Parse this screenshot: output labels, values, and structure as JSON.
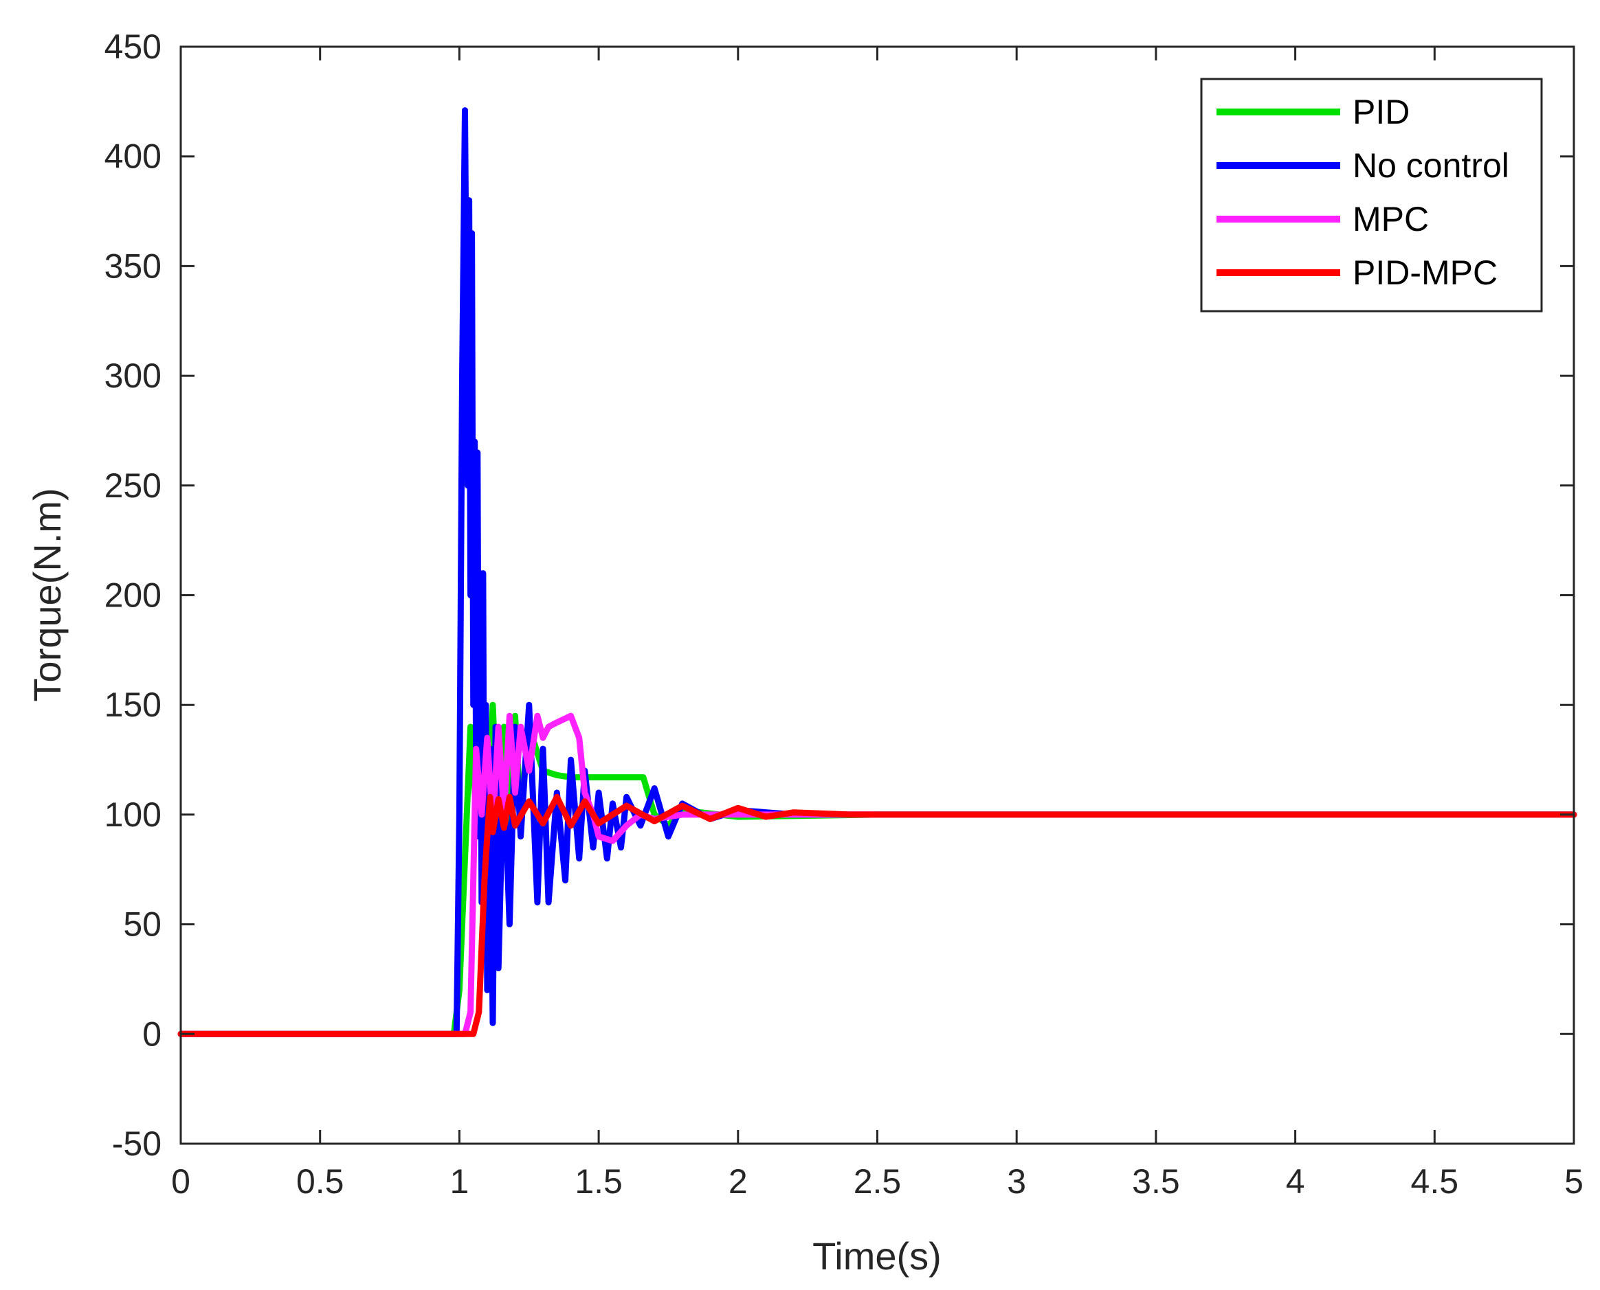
{
  "chart_data": {
    "type": "line",
    "title": "",
    "xlabel": "Time(s)",
    "ylabel": "Torque(N.m)",
    "xlim": [
      0,
      5
    ],
    "ylim": [
      -50,
      450
    ],
    "xticks": [
      0,
      0.5,
      1,
      1.5,
      2,
      2.5,
      3,
      3.5,
      4,
      4.5,
      5
    ],
    "xtick_labels": [
      "0",
      "0.5",
      "1",
      "1.5",
      "2",
      "2.5",
      "3",
      "3.5",
      "4",
      "4.5",
      "5"
    ],
    "yticks": [
      -50,
      0,
      50,
      100,
      150,
      200,
      250,
      300,
      350,
      400,
      450
    ],
    "ytick_labels": [
      "-50",
      "0",
      "50",
      "100",
      "150",
      "200",
      "250",
      "300",
      "350",
      "400",
      "450"
    ],
    "grid": false,
    "legend": "top-right",
    "series": [
      {
        "name": "PID",
        "color": "#00e000",
        "x": [
          0,
          0.98,
          1.0,
          1.02,
          1.04,
          1.06,
          1.08,
          1.1,
          1.12,
          1.14,
          1.16,
          1.18,
          1.2,
          1.22,
          1.25,
          1.3,
          1.35,
          1.4,
          1.45,
          1.5,
          1.55,
          1.6,
          1.66,
          1.7,
          1.75,
          1.8,
          2.0,
          2.5,
          3.0,
          5.0
        ],
        "y": [
          0,
          0,
          20,
          80,
          140,
          100,
          160,
          85,
          150,
          90,
          140,
          95,
          145,
          100,
          140,
          120,
          118,
          117,
          117,
          117,
          117,
          117,
          117,
          100,
          95,
          102,
          99,
          100,
          100,
          100
        ]
      },
      {
        "name": "No control",
        "color": "#0000ff",
        "x": [
          0,
          0.99,
          1.0,
          1.01,
          1.02,
          1.03,
          1.035,
          1.04,
          1.045,
          1.05,
          1.055,
          1.06,
          1.065,
          1.07,
          1.075,
          1.08,
          1.085,
          1.09,
          1.095,
          1.1,
          1.11,
          1.12,
          1.13,
          1.14,
          1.15,
          1.16,
          1.18,
          1.2,
          1.22,
          1.25,
          1.28,
          1.3,
          1.32,
          1.35,
          1.38,
          1.4,
          1.43,
          1.45,
          1.48,
          1.5,
          1.53,
          1.55,
          1.58,
          1.6,
          1.65,
          1.7,
          1.75,
          1.8,
          1.9,
          2.0,
          2.2,
          2.5,
          3.0,
          5.0
        ],
        "y": [
          0,
          0,
          100,
          300,
          421,
          250,
          380,
          200,
          365,
          150,
          270,
          120,
          265,
          90,
          210,
          60,
          210,
          40,
          150,
          20,
          130,
          5,
          140,
          30,
          80,
          120,
          50,
          140,
          90,
          150,
          60,
          130,
          60,
          110,
          70,
          125,
          80,
          120,
          85,
          110,
          80,
          105,
          85,
          108,
          95,
          112,
          90,
          105,
          98,
          102,
          100,
          100,
          100,
          100
        ]
      },
      {
        "name": "MPC",
        "color": "#ff22ff",
        "x": [
          0,
          1.02,
          1.04,
          1.06,
          1.08,
          1.1,
          1.12,
          1.14,
          1.16,
          1.18,
          1.2,
          1.22,
          1.25,
          1.28,
          1.3,
          1.32,
          1.35,
          1.4,
          1.43,
          1.45,
          1.48,
          1.5,
          1.55,
          1.6,
          1.65,
          1.7,
          1.8,
          2.0,
          2.5,
          3.0,
          5.0
        ],
        "y": [
          0,
          0,
          10,
          130,
          100,
          135,
          95,
          140,
          100,
          145,
          110,
          140,
          120,
          145,
          135,
          140,
          142,
          145,
          135,
          110,
          100,
          90,
          88,
          95,
          100,
          98,
          100,
          100,
          100,
          100,
          100
        ]
      },
      {
        "name": "PID-MPC",
        "color": "#ff0000",
        "x": [
          0,
          1.05,
          1.07,
          1.09,
          1.1,
          1.11,
          1.12,
          1.14,
          1.16,
          1.18,
          1.2,
          1.25,
          1.3,
          1.35,
          1.4,
          1.45,
          1.5,
          1.6,
          1.7,
          1.8,
          1.9,
          2.0,
          2.1,
          2.2,
          2.4,
          2.6,
          3.0,
          5.0
        ],
        "y": [
          0,
          0,
          10,
          70,
          90,
          108,
          92,
          107,
          94,
          108,
          95,
          106,
          96,
          108,
          95,
          106,
          96,
          104,
          97,
          104,
          98,
          103,
          99,
          101,
          100,
          100,
          100,
          100
        ]
      }
    ]
  }
}
